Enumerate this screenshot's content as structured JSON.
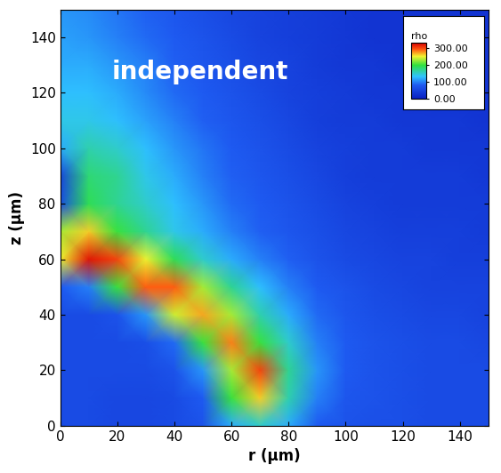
{
  "chart_data": {
    "type": "heatmap",
    "annotations": [
      "independent"
    ],
    "x_label": "r (μm)",
    "y_label": "z (μm)",
    "x": [
      0,
      10,
      20,
      30,
      40,
      50,
      60,
      70,
      80,
      90,
      100,
      110,
      120,
      130,
      140,
      150
    ],
    "y": [
      0,
      10,
      20,
      30,
      40,
      50,
      60,
      70,
      80,
      90,
      100,
      110,
      120,
      130,
      140,
      150
    ],
    "cells": [
      [
        60,
        60,
        55,
        55,
        60,
        70,
        120,
        150,
        120,
        80,
        70,
        65,
        65,
        60,
        60,
        60
      ],
      [
        60,
        60,
        55,
        55,
        60,
        80,
        200,
        260,
        160,
        100,
        75,
        70,
        65,
        60,
        60,
        60
      ],
      [
        60,
        60,
        60,
        60,
        70,
        110,
        230,
        300,
        170,
        110,
        80,
        70,
        65,
        60,
        60,
        60
      ],
      [
        60,
        60,
        60,
        65,
        90,
        200,
        280,
        200,
        150,
        100,
        80,
        70,
        65,
        60,
        60,
        55
      ],
      [
        60,
        60,
        70,
        110,
        240,
        270,
        230,
        160,
        120,
        90,
        75,
        65,
        60,
        55,
        55,
        50
      ],
      [
        80,
        100,
        200,
        290,
        290,
        230,
        170,
        130,
        100,
        80,
        70,
        60,
        55,
        50,
        50,
        50
      ],
      [
        250,
        320,
        300,
        250,
        190,
        150,
        120,
        100,
        85,
        70,
        60,
        55,
        50,
        50,
        45,
        45
      ],
      [
        230,
        260,
        200,
        170,
        140,
        120,
        100,
        85,
        75,
        65,
        55,
        50,
        45,
        45,
        45,
        40
      ],
      [
        60,
        190,
        170,
        150,
        130,
        110,
        90,
        80,
        70,
        60,
        50,
        45,
        40,
        40,
        40,
        40
      ],
      [
        50,
        180,
        170,
        140,
        120,
        100,
        85,
        75,
        65,
        55,
        45,
        40,
        40,
        40,
        40,
        35
      ],
      [
        120,
        160,
        150,
        130,
        110,
        95,
        80,
        70,
        60,
        50,
        45,
        40,
        40,
        35,
        35,
        35
      ],
      [
        140,
        140,
        130,
        115,
        100,
        85,
        75,
        65,
        55,
        45,
        40,
        40,
        35,
        35,
        35,
        30
      ],
      [
        130,
        130,
        120,
        105,
        90,
        80,
        70,
        60,
        50,
        45,
        40,
        35,
        35,
        30,
        30,
        30
      ],
      [
        120,
        120,
        110,
        100,
        85,
        75,
        65,
        55,
        50,
        40,
        35,
        35,
        30,
        30,
        30,
        30
      ],
      [
        115,
        110,
        100,
        90,
        80,
        70,
        60,
        50,
        45,
        40,
        35,
        30,
        30,
        30,
        30,
        30
      ],
      [
        110,
        105,
        95,
        85,
        75,
        65,
        55,
        50,
        45,
        40,
        35,
        30,
        30,
        30,
        30,
        30
      ]
    ],
    "xlim": [
      0,
      150
    ],
    "ylim": [
      0,
      150
    ],
    "xticks": [
      0,
      20,
      40,
      60,
      80,
      100,
      120,
      140
    ],
    "yticks": [
      0,
      20,
      40,
      60,
      80,
      100,
      120,
      140
    ],
    "colorbar": {
      "label": "rho",
      "range": [
        0,
        330
      ],
      "ticks": [
        {
          "value": 0,
          "label": "0.00"
        },
        {
          "value": 100,
          "label": "100.00"
        },
        {
          "value": 200,
          "label": "200.00"
        },
        {
          "value": 300,
          "label": "300.00"
        }
      ]
    }
  }
}
